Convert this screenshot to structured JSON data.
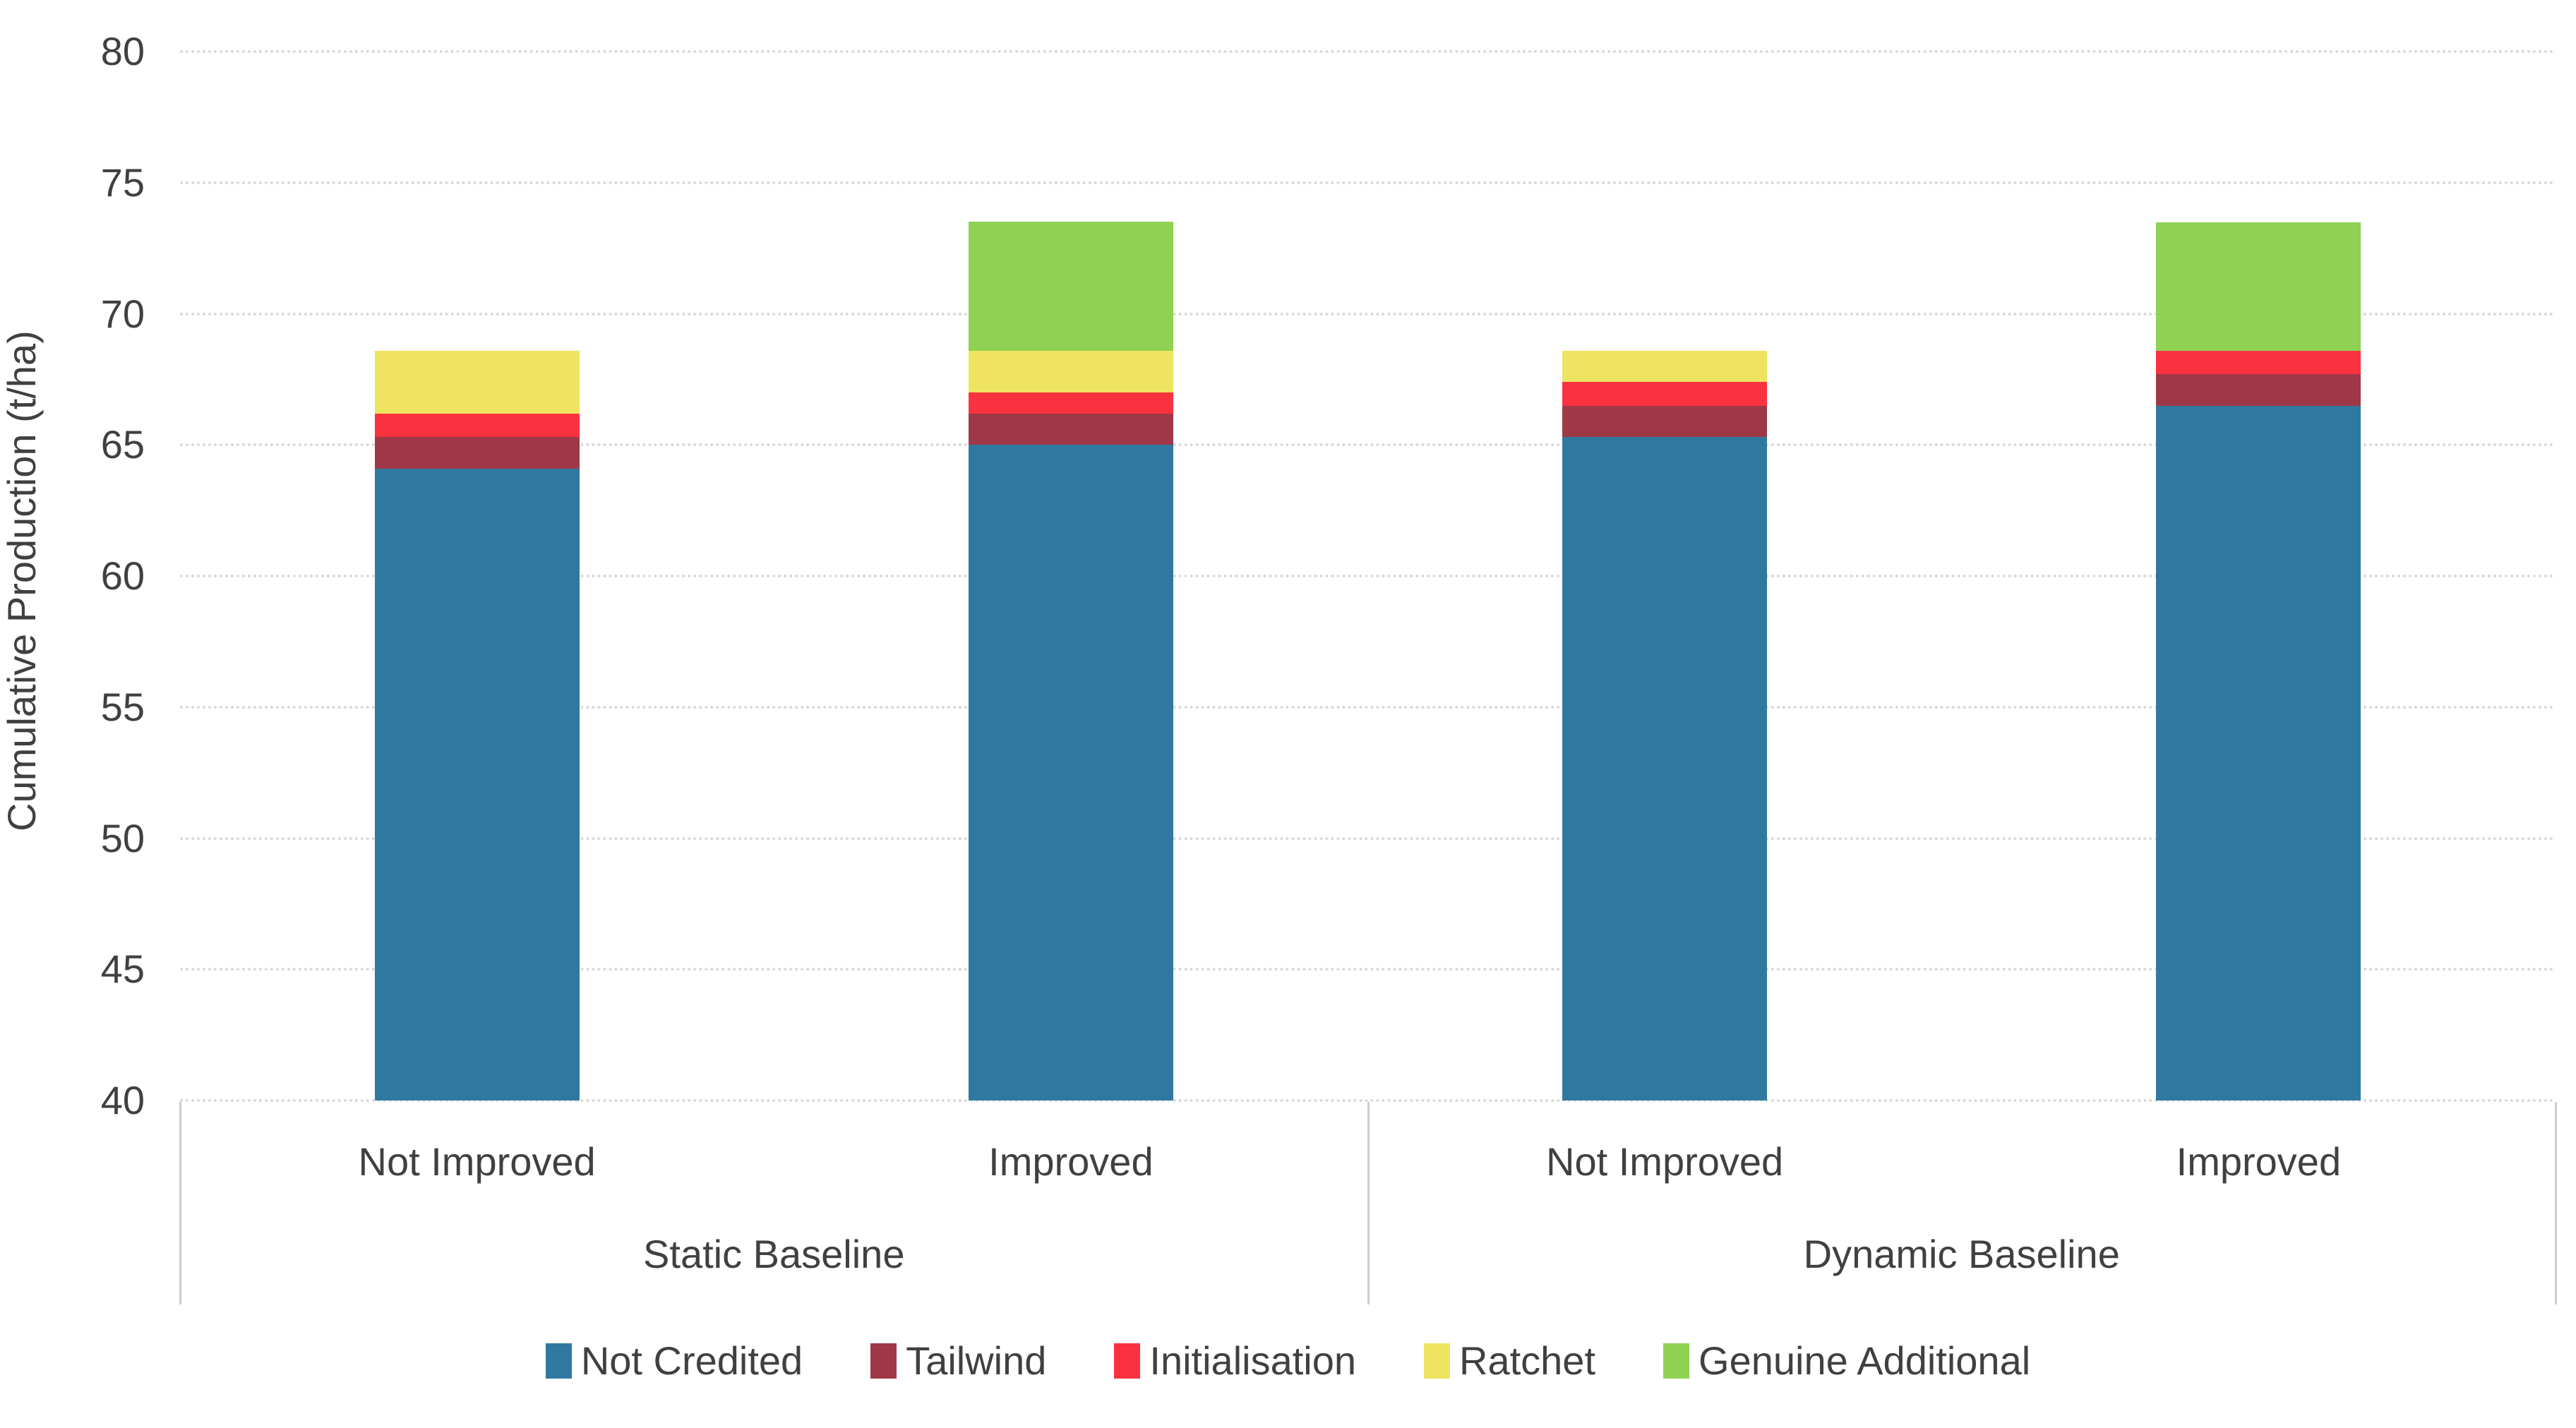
{
  "chart_data": {
    "type": "bar",
    "stacked": true,
    "title": "",
    "xlabel": "",
    "ylabel": "Cumulative Production (t/ha)",
    "ylim": [
      40,
      80
    ],
    "y_ticks": [
      40,
      45,
      50,
      55,
      60,
      65,
      70,
      75,
      80
    ],
    "y_tick_labels": [
      "40",
      "45",
      "50",
      "55",
      "60",
      "65",
      "70",
      "75",
      "80"
    ],
    "grid": "horizontal dotted gridlines on",
    "legend_position": "bottom",
    "series": [
      {
        "name": "Not Credited",
        "color": "#2F79A1"
      },
      {
        "name": "Tailwind",
        "color": "#9E3847"
      },
      {
        "name": "Initialisation",
        "color": "#FA3240"
      },
      {
        "name": "Ratchet",
        "color": "#EFE45F"
      },
      {
        "name": "Genuine Additional",
        "color": "#8FD152"
      }
    ],
    "groups": [
      {
        "label": "Static Baseline",
        "bars": [
          {
            "label": "Not Improved",
            "values": [
              64.1,
              1.2,
              0.9,
              2.4,
              0
            ],
            "stack_total": 68.6
          },
          {
            "label": "Improved",
            "values": [
              65.0,
              1.2,
              0.8,
              1.6,
              4.9
            ],
            "stack_total": 73.5
          }
        ]
      },
      {
        "label": "Dynamic Baseline",
        "bars": [
          {
            "label": "Not Improved",
            "values": [
              65.3,
              1.2,
              0.9,
              1.2,
              0
            ],
            "stack_total": 68.6
          },
          {
            "label": "Improved",
            "values": [
              66.5,
              1.2,
              0.9,
              0,
              4.9
            ],
            "stack_total": 73.5
          }
        ]
      }
    ]
  },
  "colors": {
    "gridline": "#d9d9d9",
    "axis_band_border": "#cccccc",
    "text": "#404040",
    "background": "#ffffff"
  }
}
